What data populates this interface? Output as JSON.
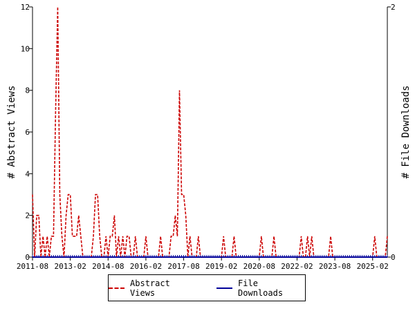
{
  "chart_data": {
    "type": "line",
    "title": "",
    "ylabel_left": "# Abstract Views",
    "ylabel_right": "# File Downloads",
    "ylim_left": [
      0,
      12
    ],
    "ylim_right": [
      0,
      2
    ],
    "yticks_left": [
      "0",
      "2",
      "4",
      "6",
      "8",
      "10",
      "12"
    ],
    "yticks_right": [
      "0",
      "2"
    ],
    "xlim": [
      "2011-08",
      "2025-09"
    ],
    "xticks": [
      "2011-08",
      "2013-02",
      "2014-08",
      "2016-02",
      "2017-08",
      "2019-02",
      "2020-08",
      "2022-02",
      "2023-08",
      "2025-02"
    ],
    "grid": false,
    "legend_position": "bottom",
    "colors": {
      "abstract_views": "#cc0000",
      "file_downloads": "#000099"
    },
    "series": [
      {
        "name": "Abstract Views",
        "axis": "left",
        "style": "dashed",
        "points": [
          [
            "2011-08",
            3
          ],
          [
            "2011-09",
            0
          ],
          [
            "2011-10",
            2
          ],
          [
            "2011-11",
            2
          ],
          [
            "2011-12",
            0
          ],
          [
            "2012-01",
            1
          ],
          [
            "2012-02",
            0
          ],
          [
            "2012-03",
            1
          ],
          [
            "2012-04",
            0
          ],
          [
            "2012-05",
            1
          ],
          [
            "2012-06",
            1
          ],
          [
            "2012-07",
            7
          ],
          [
            "2012-08",
            12
          ],
          [
            "2012-09",
            3
          ],
          [
            "2012-10",
            1
          ],
          [
            "2012-11",
            0
          ],
          [
            "2012-12",
            2
          ],
          [
            "2013-01",
            3
          ],
          [
            "2013-02",
            3
          ],
          [
            "2013-03",
            1
          ],
          [
            "2013-04",
            1
          ],
          [
            "2013-05",
            1
          ],
          [
            "2013-06",
            2
          ],
          [
            "2013-07",
            1
          ],
          [
            "2013-08",
            0
          ],
          [
            "2013-09",
            0
          ],
          [
            "2013-10",
            0
          ],
          [
            "2013-11",
            0
          ],
          [
            "2013-12",
            0
          ],
          [
            "2014-01",
            1
          ],
          [
            "2014-02",
            3
          ],
          [
            "2014-03",
            3
          ],
          [
            "2014-04",
            1
          ],
          [
            "2014-05",
            0
          ],
          [
            "2014-06",
            0
          ],
          [
            "2014-07",
            1
          ],
          [
            "2014-08",
            0
          ],
          [
            "2014-09",
            1
          ],
          [
            "2014-10",
            1
          ],
          [
            "2014-11",
            2
          ],
          [
            "2014-12",
            0
          ],
          [
            "2015-01",
            1
          ],
          [
            "2015-02",
            0
          ],
          [
            "2015-03",
            1
          ],
          [
            "2015-04",
            0
          ],
          [
            "2015-05",
            1
          ],
          [
            "2015-06",
            1
          ],
          [
            "2015-07",
            0
          ],
          [
            "2015-08",
            0
          ],
          [
            "2015-09",
            1
          ],
          [
            "2015-10",
            0
          ],
          [
            "2015-11",
            0
          ],
          [
            "2015-12",
            0
          ],
          [
            "2016-01",
            0
          ],
          [
            "2016-02",
            1
          ],
          [
            "2016-03",
            0
          ],
          [
            "2016-04",
            0
          ],
          [
            "2016-05",
            0
          ],
          [
            "2016-06",
            0
          ],
          [
            "2016-07",
            0
          ],
          [
            "2016-08",
            0
          ],
          [
            "2016-09",
            1
          ],
          [
            "2016-10",
            0
          ],
          [
            "2016-11",
            0
          ],
          [
            "2016-12",
            0
          ],
          [
            "2017-01",
            0
          ],
          [
            "2017-02",
            1
          ],
          [
            "2017-03",
            1
          ],
          [
            "2017-04",
            2
          ],
          [
            "2017-05",
            1
          ],
          [
            "2017-06",
            8
          ],
          [
            "2017-07",
            3
          ],
          [
            "2017-08",
            3
          ],
          [
            "2017-09",
            2
          ],
          [
            "2017-10",
            0
          ],
          [
            "2017-11",
            1
          ],
          [
            "2017-12",
            0
          ],
          [
            "2018-01",
            0
          ],
          [
            "2018-02",
            0
          ],
          [
            "2018-03",
            1
          ],
          [
            "2018-04",
            0
          ],
          [
            "2018-05",
            0
          ],
          [
            "2018-06",
            0
          ],
          [
            "2018-07",
            0
          ],
          [
            "2018-08",
            0
          ],
          [
            "2018-09",
            0
          ],
          [
            "2018-10",
            0
          ],
          [
            "2018-11",
            0
          ],
          [
            "2018-12",
            0
          ],
          [
            "2019-01",
            0
          ],
          [
            "2019-02",
            0
          ],
          [
            "2019-03",
            1
          ],
          [
            "2019-04",
            0
          ],
          [
            "2019-05",
            0
          ],
          [
            "2019-06",
            0
          ],
          [
            "2019-07",
            0
          ],
          [
            "2019-08",
            1
          ],
          [
            "2019-09",
            0
          ],
          [
            "2019-10",
            0
          ],
          [
            "2019-11",
            0
          ],
          [
            "2019-12",
            0
          ],
          [
            "2020-01",
            0
          ],
          [
            "2020-02",
            0
          ],
          [
            "2020-03",
            0
          ],
          [
            "2020-04",
            0
          ],
          [
            "2020-05",
            0
          ],
          [
            "2020-06",
            0
          ],
          [
            "2020-07",
            0
          ],
          [
            "2020-08",
            0
          ],
          [
            "2020-09",
            1
          ],
          [
            "2020-10",
            0
          ],
          [
            "2020-11",
            0
          ],
          [
            "2020-12",
            0
          ],
          [
            "2021-01",
            0
          ],
          [
            "2021-02",
            0
          ],
          [
            "2021-03",
            1
          ],
          [
            "2021-04",
            0
          ],
          [
            "2021-05",
            0
          ],
          [
            "2021-06",
            0
          ],
          [
            "2021-07",
            0
          ],
          [
            "2021-08",
            0
          ],
          [
            "2021-09",
            0
          ],
          [
            "2021-10",
            0
          ],
          [
            "2021-11",
            0
          ],
          [
            "2021-12",
            0
          ],
          [
            "2022-01",
            0
          ],
          [
            "2022-02",
            0
          ],
          [
            "2022-03",
            0
          ],
          [
            "2022-04",
            1
          ],
          [
            "2022-05",
            0
          ],
          [
            "2022-06",
            0
          ],
          [
            "2022-07",
            1
          ],
          [
            "2022-08",
            0
          ],
          [
            "2022-09",
            1
          ],
          [
            "2022-10",
            0
          ],
          [
            "2022-11",
            0
          ],
          [
            "2022-12",
            0
          ],
          [
            "2023-01",
            0
          ],
          [
            "2023-02",
            0
          ],
          [
            "2023-03",
            0
          ],
          [
            "2023-04",
            0
          ],
          [
            "2023-05",
            0
          ],
          [
            "2023-06",
            1
          ],
          [
            "2023-07",
            0
          ],
          [
            "2023-08",
            0
          ],
          [
            "2023-09",
            0
          ],
          [
            "2023-10",
            0
          ],
          [
            "2023-11",
            0
          ],
          [
            "2023-12",
            0
          ],
          [
            "2024-01",
            0
          ],
          [
            "2024-02",
            0
          ],
          [
            "2024-03",
            0
          ],
          [
            "2024-04",
            0
          ],
          [
            "2024-05",
            0
          ],
          [
            "2024-06",
            0
          ],
          [
            "2024-07",
            0
          ],
          [
            "2024-08",
            0
          ],
          [
            "2024-09",
            0
          ],
          [
            "2024-10",
            0
          ],
          [
            "2024-11",
            0
          ],
          [
            "2024-12",
            0
          ],
          [
            "2025-01",
            0
          ],
          [
            "2025-02",
            0
          ],
          [
            "2025-03",
            1
          ],
          [
            "2025-04",
            0
          ],
          [
            "2025-05",
            0
          ],
          [
            "2025-06",
            0
          ],
          [
            "2025-07",
            0
          ],
          [
            "2025-08",
            0
          ],
          [
            "2025-09",
            1
          ]
        ]
      },
      {
        "name": "File Downloads",
        "axis": "right",
        "style": "solid",
        "points": [
          [
            "2011-08",
            0
          ],
          [
            "2025-09",
            0
          ]
        ]
      }
    ]
  },
  "legend": {
    "abstract_views_label": "Abstract Views",
    "file_downloads_label": "File Downloads"
  }
}
